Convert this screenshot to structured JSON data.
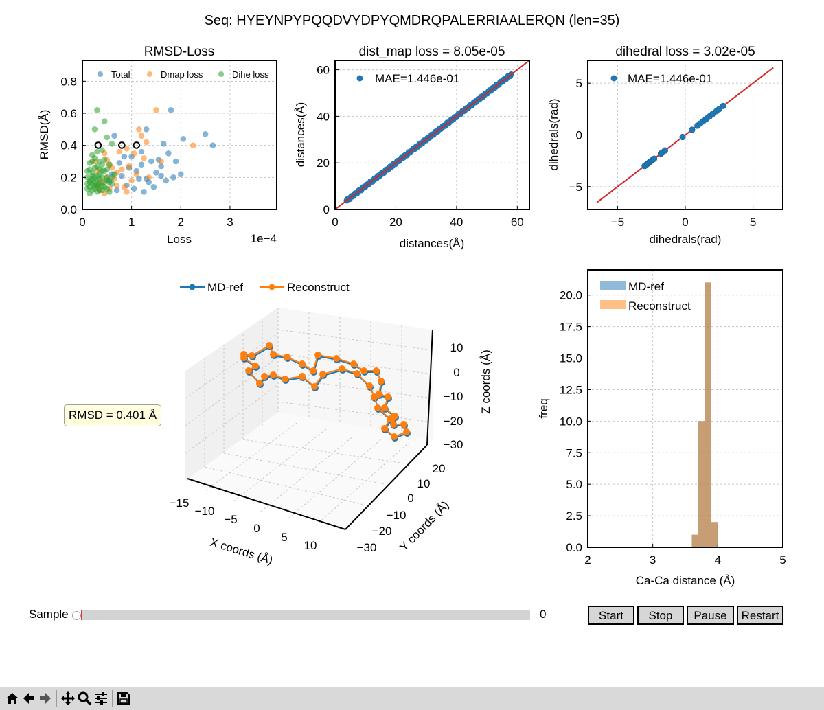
{
  "window": {
    "suptitle": "Seq: HYEYNPYPQQDVYDPYQMDRQPALERRIAALERQN (len=35)"
  },
  "colors": {
    "blue": "#1f77b4",
    "orange": "#ff7f0e",
    "green": "#2ca02c",
    "red": "#d62728"
  },
  "chart_data": [
    {
      "type": "scatter",
      "title": "RMSD-Loss",
      "xlabel": "Loss",
      "ylabel": "RMSD(Å)",
      "x_scale_label": "1e−4",
      "xlim": [
        0,
        3.95
      ],
      "ylim": [
        0,
        0.93
      ],
      "xticks": [
        0,
        1,
        2,
        3
      ],
      "xtick_labels": [
        "0",
        "1",
        "2",
        "3"
      ],
      "yticks": [
        0,
        0.2,
        0.4,
        0.6,
        0.8
      ],
      "ytick_labels": [
        "0.0",
        "0.2",
        "0.4",
        "0.6",
        "0.8"
      ],
      "grid": true,
      "legend_position": "top",
      "series": [
        {
          "name": "Total",
          "points": [
            [
              1.8,
              0.62
            ],
            [
              1.3,
              0.5
            ],
            [
              0.65,
              0.46
            ],
            [
              1.65,
              0.41
            ],
            [
              2.05,
              0.44
            ],
            [
              2.5,
              0.47
            ],
            [
              2.65,
              0.4
            ],
            [
              1.2,
              0.36
            ],
            [
              1.0,
              0.33
            ],
            [
              1.4,
              0.3
            ],
            [
              1.6,
              0.27
            ],
            [
              1.85,
              0.2
            ],
            [
              2.0,
              0.22
            ],
            [
              0.9,
              0.15
            ],
            [
              0.7,
              0.12
            ],
            [
              1.3,
              0.19
            ],
            [
              1.1,
              0.24
            ],
            [
              1.5,
              0.23
            ],
            [
              0.8,
              0.21
            ],
            [
              1.05,
              0.13
            ],
            [
              1.2,
              0.28
            ],
            [
              1.35,
              0.17
            ],
            [
              1.55,
              0.31
            ],
            [
              0.95,
              0.26
            ],
            [
              1.75,
              0.35
            ],
            [
              0.75,
              0.29
            ],
            [
              1.45,
              0.14
            ],
            [
              1.15,
              0.19
            ],
            [
              0.6,
              0.22
            ],
            [
              1.7,
              0.18
            ],
            [
              0.85,
              0.33
            ],
            [
              1.25,
              0.11
            ],
            [
              0.55,
              0.17
            ],
            [
              1.6,
              0.21
            ],
            [
              1.9,
              0.3
            ]
          ]
        },
        {
          "name": "Dmap loss",
          "points": [
            [
              1.5,
              0.62
            ],
            [
              1.2,
              0.46
            ],
            [
              1.15,
              0.5
            ],
            [
              2.25,
              0.4
            ],
            [
              1.3,
              0.42
            ],
            [
              0.9,
              0.38
            ],
            [
              0.55,
              0.28
            ],
            [
              0.8,
              0.25
            ],
            [
              0.3,
              0.24
            ],
            [
              0.5,
              0.2
            ],
            [
              1.0,
              0.18
            ],
            [
              0.7,
              0.15
            ],
            [
              1.6,
              0.3
            ],
            [
              0.45,
              0.35
            ],
            [
              1.25,
              0.32
            ],
            [
              0.65,
              0.19
            ],
            [
              0.35,
              0.12
            ],
            [
              0.85,
              0.14
            ],
            [
              0.6,
              0.26
            ],
            [
              1.1,
              0.22
            ],
            [
              0.95,
              0.27
            ],
            [
              0.4,
              0.17
            ],
            [
              0.75,
              0.36
            ],
            [
              1.35,
              0.2
            ],
            [
              0.55,
              0.13
            ],
            [
              0.9,
              0.11
            ],
            [
              0.25,
              0.3
            ],
            [
              1.05,
              0.35
            ],
            [
              0.7,
              0.23
            ],
            [
              0.5,
              0.31
            ],
            [
              0.35,
              0.16
            ],
            [
              0.45,
              0.1
            ]
          ]
        },
        {
          "name": "Dihe loss",
          "points": [
            [
              0.3,
              0.62
            ],
            [
              0.45,
              0.55
            ],
            [
              0.25,
              0.5
            ],
            [
              0.5,
              0.45
            ],
            [
              0.6,
              0.41
            ],
            [
              0.3,
              0.36
            ],
            [
              0.2,
              0.3
            ],
            [
              0.4,
              0.28
            ],
            [
              0.15,
              0.25
            ],
            [
              0.35,
              0.22
            ],
            [
              0.25,
              0.2
            ],
            [
              0.5,
              0.18
            ],
            [
              0.2,
              0.16
            ],
            [
              0.3,
              0.14
            ],
            [
              0.1,
              0.13
            ],
            [
              0.4,
              0.12
            ],
            [
              0.15,
              0.1
            ],
            [
              0.55,
              0.11
            ],
            [
              0.2,
              0.23
            ],
            [
              0.35,
              0.19
            ],
            [
              0.45,
              0.17
            ],
            [
              0.25,
              0.15
            ],
            [
              0.1,
              0.2
            ],
            [
              0.3,
              0.27
            ],
            [
              0.4,
              0.24
            ],
            [
              0.15,
              0.18
            ],
            [
              0.25,
              0.32
            ],
            [
              0.5,
              0.25
            ],
            [
              0.6,
              0.2
            ],
            [
              0.35,
              0.3
            ],
            [
              0.2,
              0.12
            ],
            [
              0.45,
              0.14
            ],
            [
              0.3,
              0.21
            ],
            [
              0.1,
              0.16
            ],
            [
              0.55,
              0.28
            ],
            [
              0.4,
              0.37
            ],
            [
              0.25,
              0.26
            ],
            [
              0.35,
              0.16
            ],
            [
              0.15,
              0.29
            ],
            [
              0.5,
              0.13
            ],
            [
              0.65,
              0.22
            ],
            [
              0.2,
              0.19
            ],
            [
              0.3,
              0.11
            ],
            [
              0.45,
              0.31
            ],
            [
              0.1,
              0.24
            ],
            [
              0.25,
              0.17
            ],
            [
              0.4,
              0.2
            ],
            [
              0.3,
              0.15
            ],
            [
              0.2,
              0.34
            ],
            [
              0.35,
              0.12
            ],
            [
              0.15,
              0.14
            ],
            [
              0.55,
              0.18
            ],
            [
              0.45,
              0.24
            ],
            [
              0.25,
              0.13
            ],
            [
              0.6,
              0.16
            ],
            [
              0.3,
              0.18
            ],
            [
              0.4,
              0.15
            ],
            [
              0.2,
              0.21
            ],
            [
              0.35,
              0.25
            ],
            [
              0.5,
              0.2
            ],
            [
              0.15,
              0.17
            ]
          ]
        },
        {
          "name": "",
          "points": [
            [
              0.32,
              0.401
            ],
            [
              0.8,
              0.401
            ],
            [
              1.1,
              0.401
            ]
          ]
        }
      ]
    },
    {
      "type": "scatter",
      "title": "dist_map loss = 8.05e-05",
      "xlabel": "distances(Å)",
      "ylabel": "distances(Å)",
      "xlim": [
        0,
        64
      ],
      "ylim": [
        0,
        64
      ],
      "xticks": [
        0,
        20,
        40,
        60
      ],
      "xtick_labels": [
        "0",
        "20",
        "40",
        "60"
      ],
      "yticks": [
        0,
        20,
        40,
        60
      ],
      "ytick_labels": [
        "0",
        "20",
        "40",
        "60"
      ],
      "grid": true,
      "legend": "MAE=1.446e-01",
      "legend_position": "top-left",
      "diagonal": [
        0,
        64
      ],
      "scatter_range": [
        3.8,
        58
      ]
    },
    {
      "type": "scatter",
      "title": "dihedral loss = 3.02e-05",
      "xlabel": "dihedrals(rad)",
      "ylabel": "dihedrals(rad)",
      "xlim": [
        -7.2,
        7.2
      ],
      "ylim": [
        -7.2,
        7.2
      ],
      "xticks": [
        -5,
        0,
        5
      ],
      "xtick_labels": [
        "−5",
        "0",
        "5"
      ],
      "yticks": [
        -5,
        0,
        5
      ],
      "ytick_labels": [
        "−5",
        "0",
        "5"
      ],
      "grid": true,
      "legend": "MAE=1.446e-01",
      "legend_position": "top-left",
      "diagonal": [
        -6.5,
        6.5
      ],
      "points": [
        -3.0,
        -2.9,
        -2.8,
        -2.7,
        -2.6,
        -2.5,
        -2.4,
        -2.3,
        -1.8,
        -1.7,
        -1.5,
        -0.2,
        0.5,
        0.9,
        1.1,
        1.3,
        1.5,
        1.6,
        1.8,
        2.0,
        2.3,
        2.5,
        2.8
      ]
    },
    {
      "type": "line",
      "title": "",
      "xlabel": "X coords (Å)",
      "ylabel": "Y coords (Å)",
      "zlabel": "Z coords (Å)",
      "x_ticks": [
        "−15",
        "−10",
        "−5",
        "0",
        "5",
        "10"
      ],
      "y_ticks": [
        "−30",
        "−20",
        "−10",
        "0",
        "10",
        "20"
      ],
      "z_ticks": [
        "10",
        "0",
        "−10",
        "−20",
        "−30"
      ],
      "legend_position": "top",
      "series": [
        {
          "name": "MD-ref"
        },
        {
          "name": "Reconstruct"
        }
      ],
      "annotation": "RMSD = 0.401 Å"
    },
    {
      "type": "bar",
      "title": "",
      "xlabel": "Ca-Ca distance (Å)",
      "ylabel": "freq",
      "xlim": [
        2,
        5
      ],
      "ylim": [
        0,
        22
      ],
      "xticks": [
        2,
        3,
        4,
        5
      ],
      "xtick_labels": [
        "2",
        "3",
        "4",
        "5"
      ],
      "yticks": [
        0,
        2.5,
        5,
        7.5,
        10,
        12.5,
        15,
        17.5,
        20
      ],
      "ytick_labels": [
        "0.0",
        "2.5",
        "5.0",
        "7.5",
        "10.0",
        "12.5",
        "15.0",
        "17.5",
        "20.0"
      ],
      "grid": true,
      "legend_position": "top-left",
      "bins": [
        [
          3.6,
          3.7,
          1
        ],
        [
          3.7,
          3.8,
          10
        ],
        [
          3.8,
          3.9,
          21
        ],
        [
          3.9,
          4.0,
          2
        ]
      ],
      "series": [
        {
          "name": "MD-ref"
        },
        {
          "name": "Reconstruct"
        }
      ]
    }
  ],
  "slider": {
    "label": "Sample",
    "value": "0",
    "fraction": 0.0
  },
  "buttons": {
    "start": "Start",
    "stop": "Stop",
    "pause": "Pause",
    "restart": "Restart"
  },
  "toolbar": {
    "icons": [
      "home-icon",
      "back-icon",
      "forward-icon",
      "pan-icon",
      "zoom-icon",
      "configure-subplots-icon",
      "save-icon"
    ]
  }
}
